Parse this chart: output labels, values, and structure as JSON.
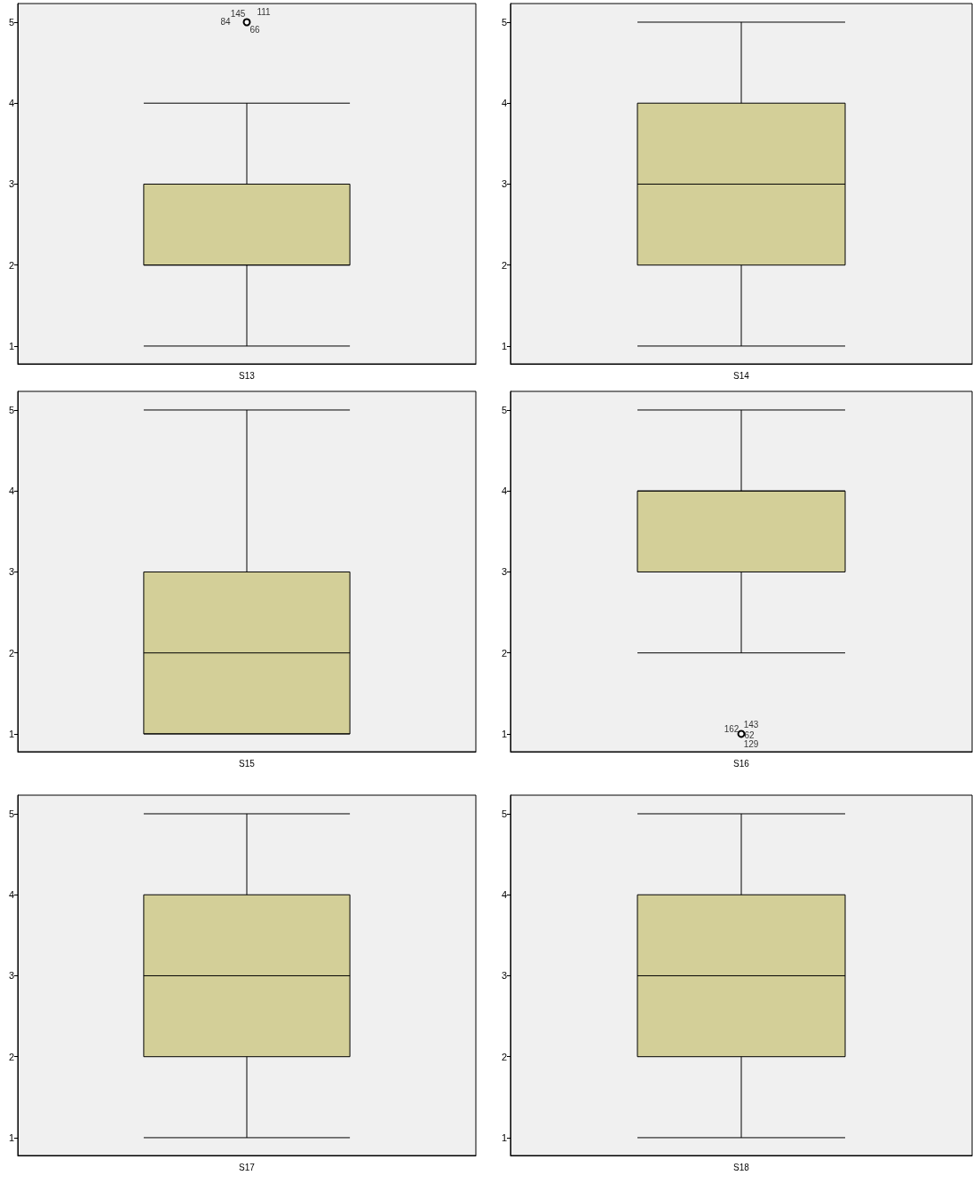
{
  "chart_data": [
    {
      "type": "box",
      "categories": [
        "S13"
      ],
      "ylim": [
        0.78,
        5.23
      ],
      "yticks": [
        1,
        2,
        3,
        4,
        5
      ],
      "color": "#d3cf98",
      "boxes": [
        {
          "low": 1,
          "q1": 2,
          "median": 2,
          "q3": 3,
          "high": 4,
          "outliers": [
            5
          ]
        }
      ],
      "annotations": [
        "84",
        "145",
        "111",
        "66"
      ]
    },
    {
      "type": "box",
      "categories": [
        "S14"
      ],
      "ylim": [
        0.78,
        5.23
      ],
      "yticks": [
        1,
        2,
        3,
        4,
        5
      ],
      "color": "#d3cf98",
      "boxes": [
        {
          "low": 1,
          "q1": 2,
          "median": 3,
          "q3": 4,
          "high": 5
        }
      ]
    },
    {
      "type": "box",
      "categories": [
        "S15"
      ],
      "ylim": [
        0.78,
        5.23
      ],
      "yticks": [
        1,
        2,
        3,
        4,
        5
      ],
      "color": "#d3cf98",
      "boxes": [
        {
          "low": 1,
          "q1": 1,
          "median": 2,
          "q3": 3,
          "high": 5
        }
      ]
    },
    {
      "type": "box",
      "categories": [
        "S16"
      ],
      "ylim": [
        0.78,
        5.23
      ],
      "yticks": [
        1,
        2,
        3,
        4,
        5
      ],
      "color": "#d3cf98",
      "boxes": [
        {
          "low": 2,
          "q1": 3,
          "median": 4,
          "q3": 4,
          "high": 5,
          "outliers": [
            1
          ]
        }
      ],
      "annotations": [
        "162",
        "143",
        "62",
        "129"
      ]
    },
    {
      "type": "box",
      "categories": [
        "S17"
      ],
      "ylim": [
        0.78,
        5.23
      ],
      "yticks": [
        1,
        2,
        3,
        4,
        5
      ],
      "color": "#d3cf98",
      "boxes": [
        {
          "low": 1,
          "q1": 2,
          "median": 3,
          "q3": 4,
          "high": 5
        }
      ]
    },
    {
      "type": "box",
      "categories": [
        "S18"
      ],
      "ylim": [
        0.78,
        5.23
      ],
      "yticks": [
        1,
        2,
        3,
        4,
        5
      ],
      "color": "#d3cf98",
      "boxes": [
        {
          "low": 1,
          "q1": 2,
          "median": 3,
          "q3": 4,
          "high": 5
        }
      ]
    }
  ]
}
